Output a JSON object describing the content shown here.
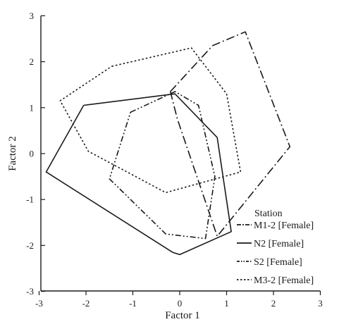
{
  "chart_data": {
    "type": "scatter",
    "xlabel": "Factor 1",
    "ylabel": "Factor 2",
    "xlim": [
      -3,
      3
    ],
    "ylim": [
      -3,
      3
    ],
    "xticks": [
      "-3",
      "-2",
      "-1",
      "0",
      "1",
      "2",
      "3"
    ],
    "yticks": [
      "-3",
      "-2",
      "-1",
      "0",
      "1",
      "2",
      "3"
    ],
    "grid": false,
    "legend": {
      "title": "Station",
      "position": "bottom-right"
    },
    "series": [
      {
        "name": "M1-2 [Female]",
        "line_style": "dash-dot",
        "polygon": [
          [
            -0.2,
            1.35
          ],
          [
            0.7,
            2.35
          ],
          [
            1.4,
            2.65
          ],
          [
            2.35,
            0.15
          ],
          [
            0.8,
            -1.8
          ],
          [
            -0.05,
            0.75
          ],
          [
            -0.2,
            1.35
          ]
        ]
      },
      {
        "name": "N2 [Female]",
        "line_style": "solid",
        "polygon": [
          [
            -2.05,
            1.05
          ],
          [
            -0.1,
            1.3
          ],
          [
            0.8,
            0.35
          ],
          [
            1.1,
            -1.7
          ],
          [
            0.0,
            -2.2
          ],
          [
            -0.15,
            -2.15
          ],
          [
            -2.85,
            -0.4
          ],
          [
            -2.05,
            1.05
          ]
        ]
      },
      {
        "name": "S2 [Female]",
        "line_style": "dash-dot-dot",
        "polygon": [
          [
            -1.05,
            0.9
          ],
          [
            -0.1,
            1.35
          ],
          [
            0.4,
            1.05
          ],
          [
            0.75,
            -0.5
          ],
          [
            0.55,
            -1.85
          ],
          [
            -0.3,
            -1.75
          ],
          [
            -1.5,
            -0.55
          ],
          [
            -1.05,
            0.9
          ]
        ]
      },
      {
        "name": "M3-2 [Female]",
        "line_style": "dotted",
        "polygon": [
          [
            -1.45,
            1.9
          ],
          [
            0.25,
            2.3
          ],
          [
            1.0,
            1.3
          ],
          [
            1.3,
            -0.4
          ],
          [
            -0.3,
            -0.85
          ],
          [
            -1.95,
            0.05
          ],
          [
            -2.55,
            1.15
          ],
          [
            -1.45,
            1.9
          ]
        ]
      }
    ]
  }
}
